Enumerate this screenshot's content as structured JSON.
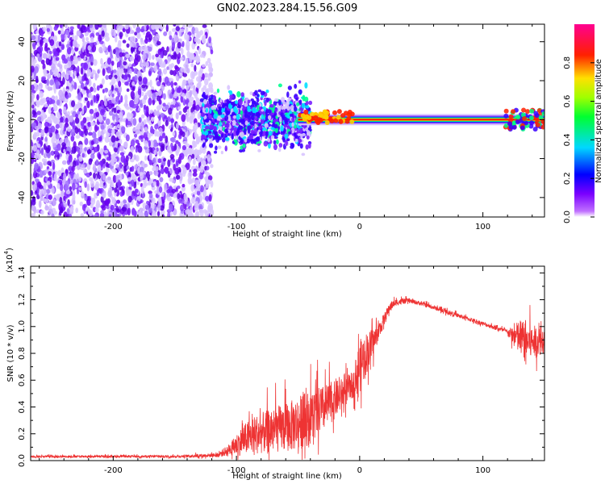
{
  "title": "GN02.2023.284.15.56.G09",
  "chart_data": [
    {
      "type": "heatmap",
      "name": "spectrogram",
      "xlabel": "Height of straight line (km)",
      "ylabel": "Frequency (Hz)",
      "xlim": [
        -267,
        150
      ],
      "ylim": [
        -50,
        49
      ],
      "xticks": [
        -200,
        -100,
        0,
        100
      ],
      "yticks": [
        -40,
        -20,
        0,
        20,
        40
      ],
      "colorbar": {
        "label": "Normalized spectral amplitude",
        "range": [
          0,
          1
        ],
        "ticks": [
          "0.0",
          "0.2",
          "0.4",
          "0.6",
          "0.8"
        ],
        "colormap": [
          "#ffffff",
          "#8a00ff",
          "#0000ff",
          "#00ffff",
          "#00ff00",
          "#ffff00",
          "#ff0000",
          "#ff00a0"
        ]
      },
      "features": {
        "noise_region_x": [
          -267,
          -128
        ],
        "scatter_region_x": [
          -128,
          -50
        ],
        "carrier_line_x": [
          -50,
          150
        ],
        "carrier_frequency_hz": 0
      }
    },
    {
      "type": "line",
      "name": "snr",
      "xlabel": "Height of straight line (km)",
      "ylabel": "SNR (10 * v/v)",
      "y_multiplier": "(x10",
      "y_multiplier_exp": "4",
      "y_multiplier_close": ")",
      "xlim": [
        -267,
        150
      ],
      "ylim": [
        0,
        1.45
      ],
      "xticks": [
        -200,
        -100,
        0,
        100
      ],
      "yticks": [
        "0.0",
        "0.2",
        "0.4",
        "0.6",
        "0.8",
        "1.0",
        "1.2",
        "1.4"
      ],
      "color": "#ee3333",
      "series": [
        {
          "x": [
            -267,
            -200,
            -150,
            -115,
            -105,
            -95,
            -85,
            -75,
            -65,
            -55,
            -45,
            -35,
            -25,
            -15,
            -5,
            0,
            5,
            10,
            15,
            20,
            25,
            30,
            40,
            50,
            60,
            70,
            80,
            90,
            100,
            110,
            120,
            125,
            130,
            135,
            140,
            145,
            150
          ],
          "y": [
            0.03,
            0.03,
            0.03,
            0.04,
            0.08,
            0.14,
            0.18,
            0.2,
            0.22,
            0.24,
            0.28,
            0.33,
            0.4,
            0.48,
            0.56,
            0.68,
            0.78,
            0.85,
            0.95,
            1.05,
            1.15,
            1.18,
            1.19,
            1.17,
            1.14,
            1.11,
            1.08,
            1.05,
            1.02,
            0.99,
            0.96,
            0.92,
            0.9,
            0.88,
            0.87,
            0.88,
            0.89
          ],
          "noise_amplitude": [
            0.01,
            0.01,
            0.01,
            0.02,
            0.06,
            0.14,
            0.18,
            0.2,
            0.22,
            0.24,
            0.26,
            0.24,
            0.2,
            0.15,
            0.12,
            0.25,
            0.2,
            0.15,
            0.08,
            0.06,
            0.04,
            0.03,
            0.02,
            0.02,
            0.02,
            0.02,
            0.02,
            0.02,
            0.02,
            0.02,
            0.02,
            0.1,
            0.18,
            0.18,
            0.16,
            0.14,
            0.12
          ]
        }
      ]
    }
  ]
}
